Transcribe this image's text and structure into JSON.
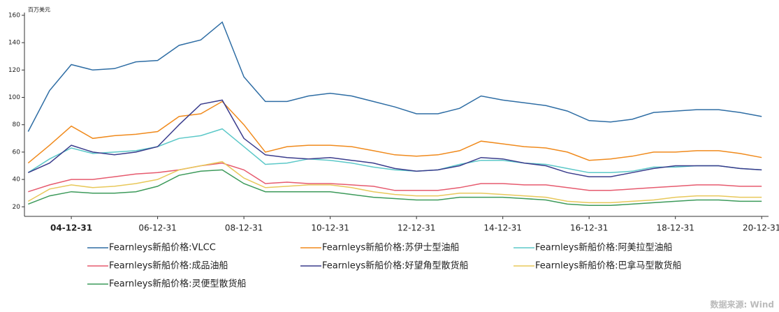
{
  "chart_data": {
    "type": "line",
    "unit_label": "百万美元",
    "source": "数据来源: Wind",
    "x": [
      "03-12-31",
      "04-06-30",
      "04-12-31",
      "05-06-30",
      "05-12-31",
      "06-06-30",
      "06-12-31",
      "07-06-30",
      "07-12-31",
      "08-06-30",
      "08-12-31",
      "09-06-30",
      "09-12-31",
      "10-06-30",
      "10-12-31",
      "11-06-30",
      "11-12-31",
      "12-06-30",
      "12-12-31",
      "13-06-30",
      "13-12-31",
      "14-06-30",
      "14-12-31",
      "15-06-30",
      "15-12-31",
      "16-06-30",
      "16-12-31",
      "17-06-30",
      "17-12-31",
      "18-06-30",
      "18-12-31",
      "19-06-30",
      "19-12-31",
      "20-06-30",
      "20-12-31"
    ],
    "series": [
      {
        "name": "Fearnleys新船价格:VLCC",
        "color": "#2e6da4",
        "values": [
          75,
          105,
          124,
          120,
          121,
          126,
          127,
          138,
          142,
          155,
          115,
          97,
          97,
          101,
          103,
          101,
          97,
          93,
          88,
          88,
          92,
          101,
          98,
          96,
          94,
          90,
          83,
          82,
          84,
          89,
          90,
          91,
          91,
          89,
          86
        ]
      },
      {
        "name": "Fearnleys新船价格:苏伊士型油船",
        "color": "#f08a1c",
        "values": [
          52,
          65,
          79,
          70,
          72,
          73,
          75,
          86,
          88,
          97,
          80,
          60,
          64,
          65,
          65,
          64,
          61,
          58,
          57,
          58,
          61,
          68,
          66,
          64,
          63,
          60,
          54,
          55,
          57,
          60,
          60,
          61,
          61,
          59,
          56
        ]
      },
      {
        "name": "Fearnleys新船价格:阿美拉型油船",
        "color": "#5bc8c8",
        "values": [
          45,
          55,
          63,
          59,
          60,
          61,
          64,
          70,
          72,
          77,
          64,
          51,
          52,
          55,
          54,
          52,
          49,
          47,
          46,
          47,
          51,
          54,
          54,
          52,
          51,
          48,
          45,
          45,
          46,
          49,
          49,
          50,
          50,
          48,
          47
        ]
      },
      {
        "name": "Fearnleys新船价格:成品油船",
        "color": "#e65a6e",
        "values": [
          31,
          36,
          40,
          40,
          42,
          44,
          45,
          47,
          50,
          52,
          47,
          37,
          38,
          37,
          37,
          36,
          35,
          32,
          32,
          32,
          34,
          37,
          37,
          36,
          36,
          34,
          32,
          32,
          33,
          34,
          35,
          36,
          36,
          35,
          35
        ]
      },
      {
        "name": "Fearnleys新船价格:好望角型散货船",
        "color": "#3a3c8c",
        "values": [
          45,
          52,
          65,
          60,
          58,
          60,
          64,
          80,
          95,
          98,
          70,
          58,
          56,
          55,
          56,
          54,
          52,
          48,
          46,
          47,
          50,
          56,
          55,
          52,
          50,
          45,
          42,
          42,
          45,
          48,
          50,
          50,
          50,
          48,
          47
        ]
      },
      {
        "name": "Fearnleys新船价格:巴拿马型散货船",
        "color": "#e8c85a",
        "values": [
          24,
          33,
          36,
          34,
          35,
          37,
          40,
          47,
          50,
          53,
          41,
          34,
          35,
          36,
          36,
          34,
          31,
          29,
          28,
          28,
          30,
          30,
          29,
          28,
          27,
          24,
          23,
          23,
          24,
          25,
          27,
          28,
          28,
          27,
          27
        ]
      },
      {
        "name": "Fearnleys新船价格:灵便型散货船",
        "color": "#3c9a5a",
        "values": [
          22,
          28,
          31,
          30,
          30,
          31,
          35,
          43,
          46,
          47,
          37,
          31,
          31,
          31,
          31,
          29,
          27,
          26,
          25,
          25,
          27,
          27,
          27,
          26,
          25,
          22,
          21,
          21,
          22,
          23,
          24,
          25,
          25,
          24,
          24
        ]
      }
    ],
    "xlim": [
      "03-11-30",
      "21-02-28"
    ],
    "xticks": [
      "04-12-31",
      "06-12-31",
      "08-12-31",
      "10-12-31",
      "12-12-31",
      "14-12-31",
      "16-12-31",
      "18-12-31",
      "20-12-31"
    ],
    "ylim": [
      13,
      162
    ],
    "yticks": [
      20,
      40,
      60,
      80,
      100,
      120,
      140,
      160
    ]
  }
}
